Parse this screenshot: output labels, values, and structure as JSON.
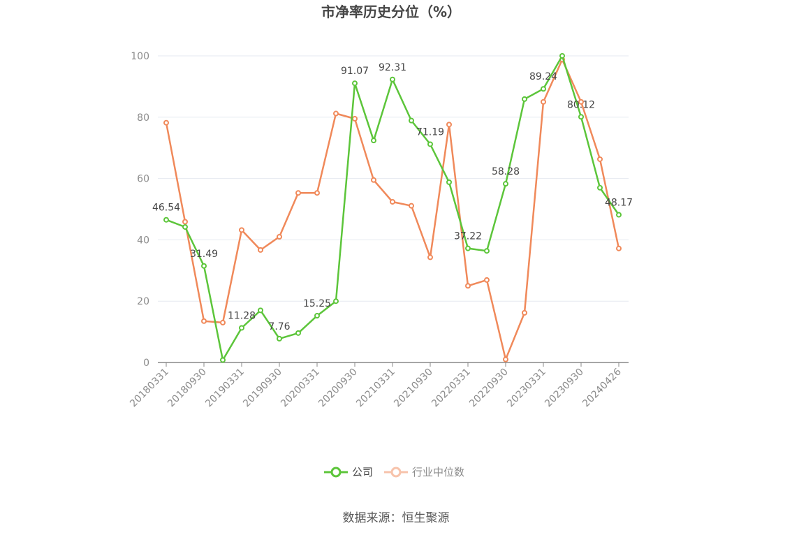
{
  "chart_data": {
    "type": "line",
    "title": "市净率历史分位（%）",
    "ylim": [
      0,
      100
    ],
    "yticks": [
      0,
      20,
      40,
      60,
      80,
      100
    ],
    "x": [
      "20180331",
      "20180630",
      "20180930",
      "20181231",
      "20190331",
      "20190630",
      "20190930",
      "20191231",
      "20200331",
      "20200630",
      "20200930",
      "20201231",
      "20210331",
      "20210630",
      "20210930",
      "20211231",
      "20220331",
      "20220630",
      "20220930",
      "20221231",
      "20230331",
      "20230630",
      "20230930",
      "20231231",
      "20240426"
    ],
    "xtick_labels": [
      "20180331",
      "20180930",
      "20190331",
      "20190930",
      "20200331",
      "20200930",
      "20210331",
      "20210930",
      "20220331",
      "20220930",
      "20230331",
      "20230930",
      "20240426"
    ],
    "xtick_indices": [
      0,
      2,
      4,
      6,
      8,
      10,
      12,
      14,
      16,
      18,
      20,
      22,
      24
    ],
    "series": [
      {
        "name": "公司",
        "color": "#5cc53a",
        "values": [
          46.54,
          44.2,
          31.49,
          0.8,
          11.28,
          17.0,
          7.76,
          9.6,
          15.25,
          20.0,
          91.07,
          72.4,
          92.31,
          78.9,
          71.19,
          58.8,
          37.22,
          36.4,
          58.28,
          85.9,
          89.24,
          100.0,
          80.12,
          57.0,
          48.17
        ],
        "labeled_indices": [
          0,
          2,
          4,
          6,
          8,
          10,
          12,
          14,
          16,
          18,
          20,
          22,
          24
        ]
      },
      {
        "name": "行业中位数",
        "color": "#f0895a",
        "values": [
          78.2,
          45.9,
          13.5,
          13.0,
          43.2,
          36.7,
          41.0,
          55.3,
          55.3,
          81.2,
          79.5,
          59.5,
          52.4,
          51.1,
          34.3,
          77.6,
          25.0,
          26.9,
          1.0,
          16.2,
          85.0,
          98.8,
          85.0,
          66.3,
          37.2
        ]
      }
    ],
    "grid": true,
    "legend_position": "bottom-center"
  },
  "legend": {
    "company_label": "公司",
    "industry_label": "行业中位数"
  },
  "source": "数据来源：恒生聚源"
}
